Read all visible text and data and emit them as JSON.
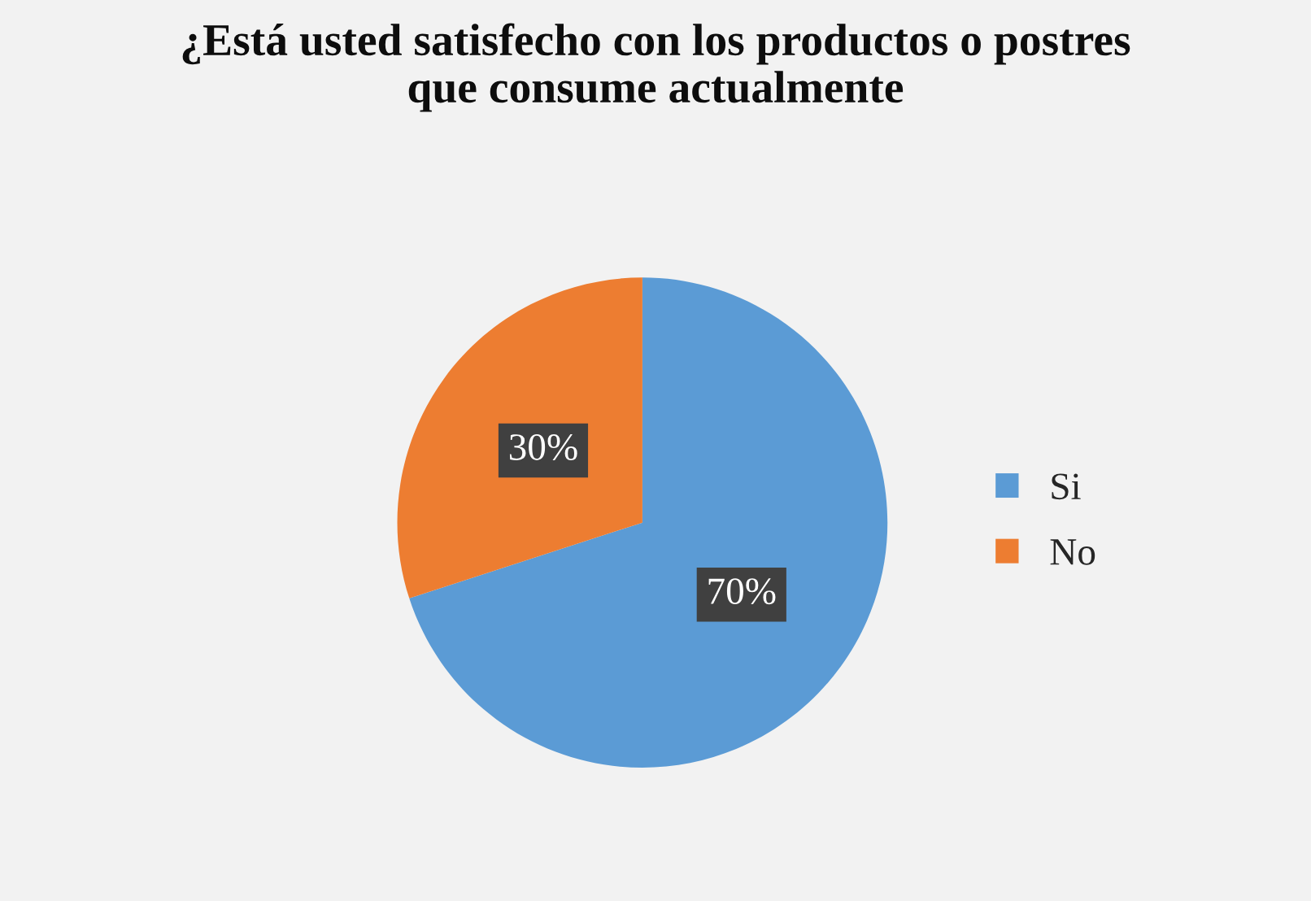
{
  "chart_data": {
    "type": "pie",
    "title": "¿Está usted satisfecho con los productos o postres\nque consume actualmente",
    "categories": [
      "Si",
      "No"
    ],
    "values": [
      70,
      30
    ],
    "colors": [
      "#5b9bd5",
      "#ed7d31"
    ],
    "value_labels": [
      "70%",
      "30%"
    ],
    "legend": "right"
  }
}
